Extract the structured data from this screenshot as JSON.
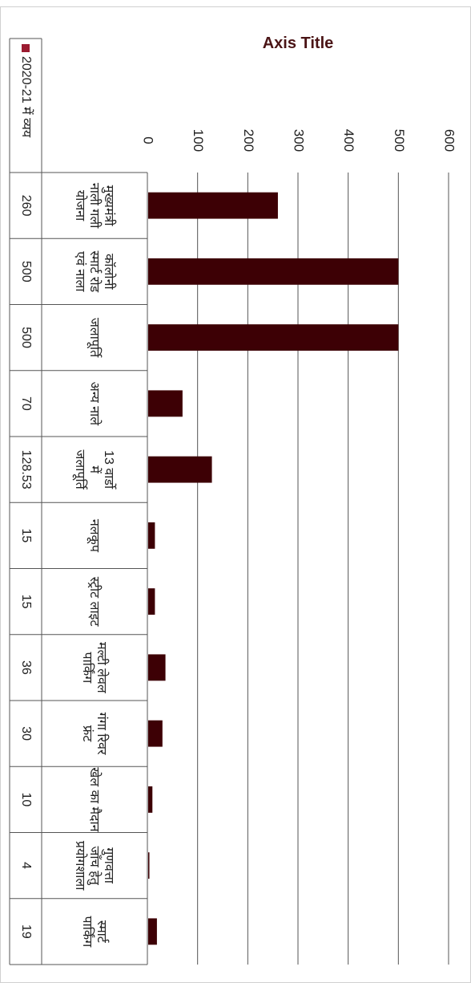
{
  "chart_data": {
    "type": "bar",
    "title": "Axis Title",
    "categories": [
      "मुख्यमंत्री नाली गली योजना",
      "कॉलोनी स्मार्ट रोड एवं नाला",
      "जलापूर्ति",
      "अन्य नाले",
      "13 वार्डो में जलापूर्ति",
      "नलकूप",
      "स्ट्रीट लाइट",
      "मल्टी लेवल पार्किंग",
      "गंगा रिवर फ्रंट",
      "खेल का मैदान",
      "गुणवत्ता जाँच हेतु प्रयोगशाला",
      "स्मार्ट पार्किंग"
    ],
    "series": [
      {
        "name": "2020-21 में व्यय",
        "values": [
          "260",
          "500",
          "500",
          "70",
          "128.53",
          "15",
          "15",
          "36",
          "30",
          "10",
          "4",
          "19"
        ],
        "color": "#3d0005"
      }
    ],
    "ylim": [
      0,
      600
    ],
    "yticks": [
      "0",
      "100",
      "200",
      "300",
      "400",
      "500",
      "600"
    ],
    "grid": true,
    "legend": "left",
    "data_table": true
  }
}
